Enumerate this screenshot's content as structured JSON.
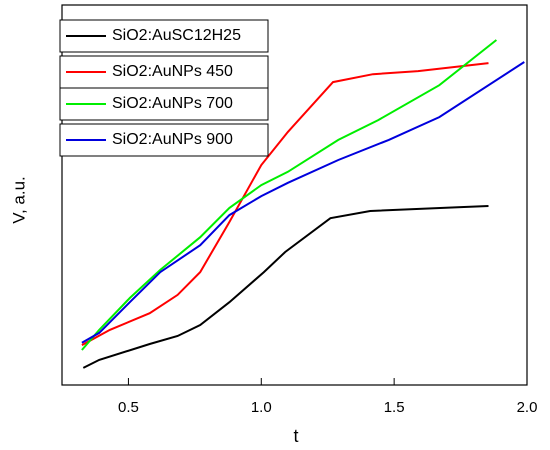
{
  "chart_data": {
    "type": "line",
    "x_label": "t",
    "y_label": "V, a.u.",
    "xlim": [
      0.25,
      2.0
    ],
    "ylim": [
      0,
      100
    ],
    "xticks": [
      0.5,
      {
        "value": 1.0,
        "label": "1.0"
      },
      1.5,
      {
        "value": 2.0,
        "label": "2.0"
      }
    ],
    "legend": "upper left",
    "series": [
      {
        "name": "SiO2:AuSC12H25",
        "color": "#000000",
        "x": [
          0.33,
          0.39,
          0.58,
          0.685,
          0.77,
          0.88,
          1.01,
          1.09,
          1.26,
          1.41,
          1.74,
          1.855
        ],
        "values": [
          4.5,
          6.6,
          10.8,
          12.9,
          15.8,
          21.8,
          29.7,
          35,
          43.9,
          45.8,
          46.8,
          47.1
        ]
      },
      {
        "name": "SiO2:AuNPs 450",
        "color": "#ff0000",
        "x": [
          0.325,
          0.43,
          0.58,
          0.685,
          0.77,
          0.88,
          1.0,
          1.1,
          1.27,
          1.42,
          1.59,
          1.855
        ],
        "values": [
          10.5,
          14.5,
          18.9,
          23.7,
          29.7,
          42.9,
          57.9,
          66.6,
          79.7,
          81.8,
          82.6,
          84.7
        ]
      },
      {
        "name": "SiO2:AuNPs 700",
        "color": "#00ee00",
        "x": [
          0.325,
          0.39,
          0.505,
          0.62,
          0.77,
          0.88,
          1.0,
          1.1,
          1.29,
          1.44,
          1.67,
          1.885
        ],
        "values": [
          9.2,
          14.5,
          22.9,
          30.3,
          38.9,
          46.6,
          52.6,
          56.1,
          64.5,
          69.7,
          78.9,
          90.8
        ]
      },
      {
        "name": "SiO2:AuNPs 900",
        "color": "#0000dd",
        "x": [
          0.325,
          0.39,
          0.505,
          0.62,
          0.77,
          0.88,
          1.0,
          1.1,
          1.29,
          1.48,
          1.67,
          1.99
        ],
        "values": [
          11.1,
          13.7,
          21.8,
          29.7,
          36.8,
          44.7,
          49.7,
          53.2,
          59.2,
          64.5,
          70.5,
          85
        ]
      }
    ]
  }
}
